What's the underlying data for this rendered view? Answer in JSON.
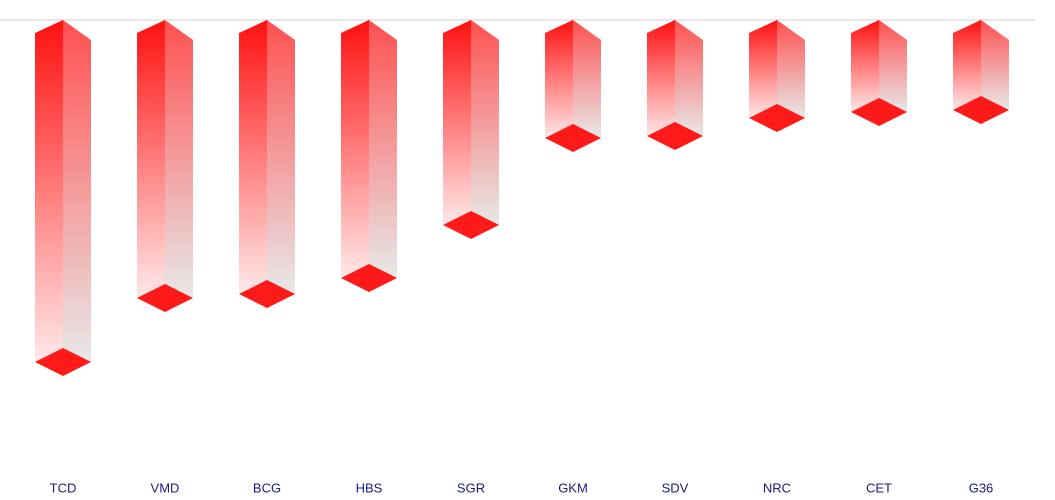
{
  "chart_data": {
    "type": "bar3d",
    "categories": [
      "TCD",
      "VMD",
      "BCG",
      "HBS",
      "SGR",
      "GKM",
      "SDV",
      "NRC",
      "CET",
      "G36"
    ],
    "values": [
      -342,
      -278,
      -274,
      -258,
      -205,
      -118,
      -116,
      -98,
      -92,
      -90
    ],
    "color": "#ff1a1a",
    "label_color": "#1a1a80",
    "ylim": [
      -450,
      0
    ]
  }
}
